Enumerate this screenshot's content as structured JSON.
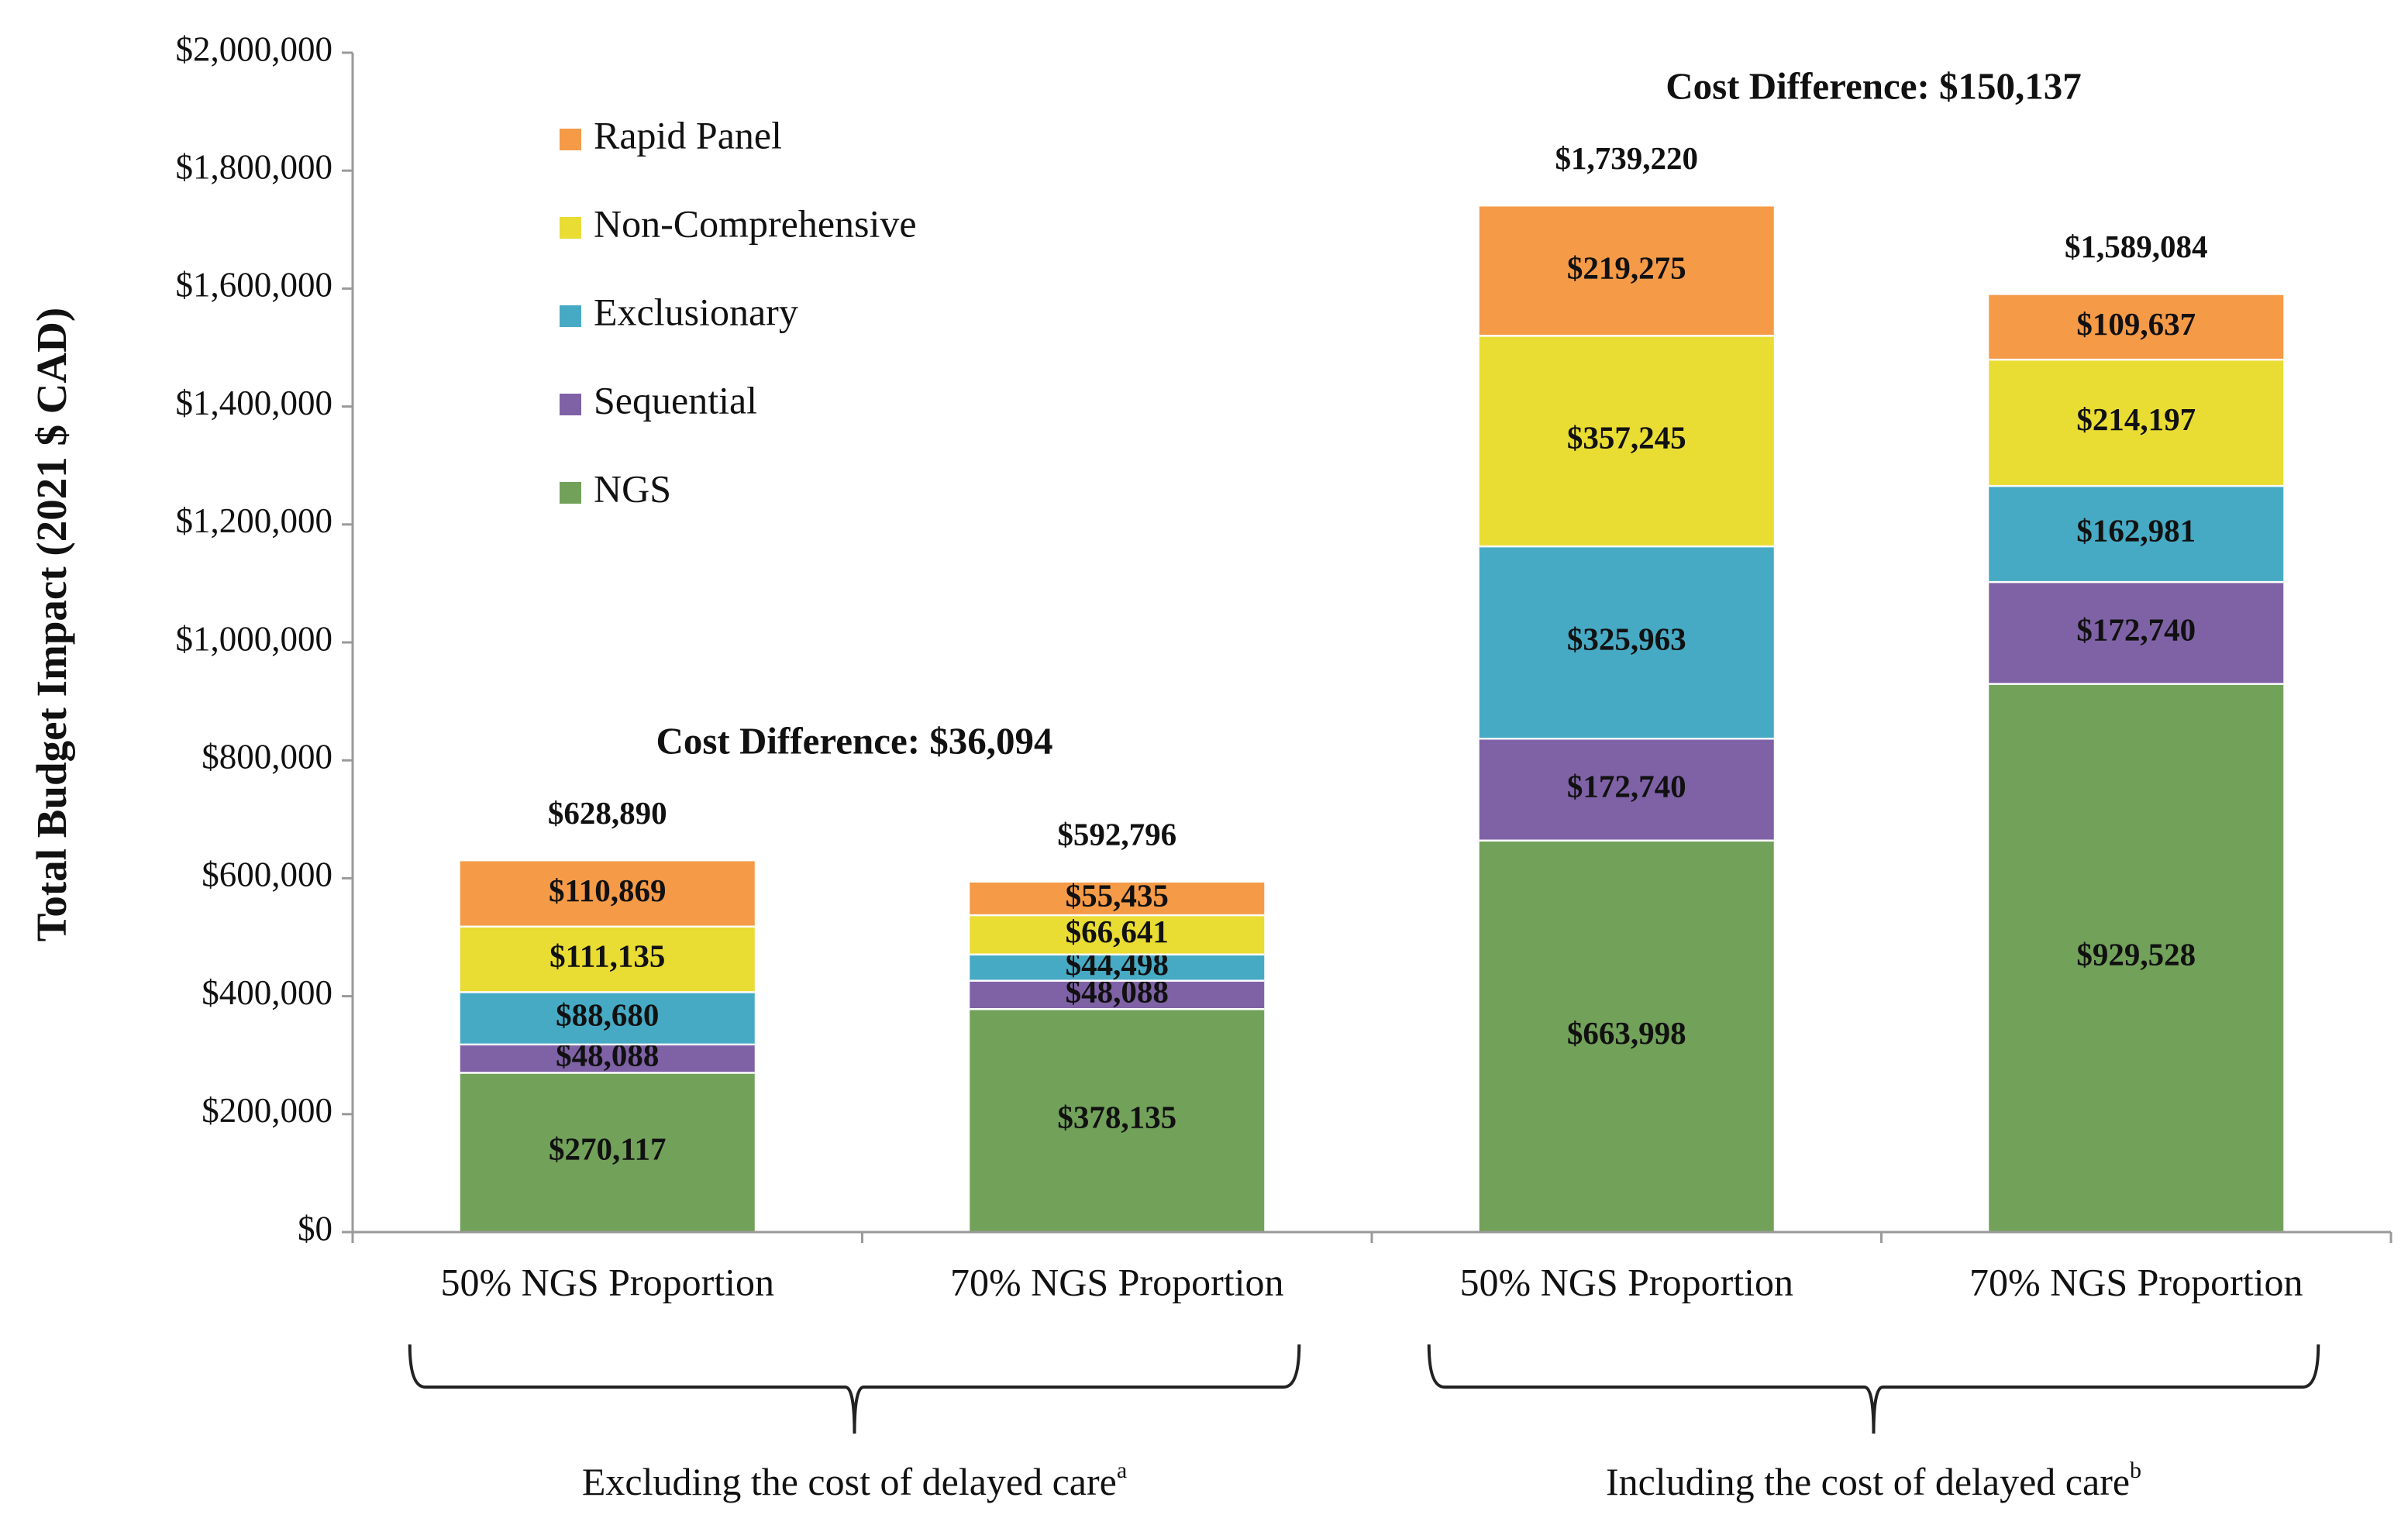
{
  "chart_data": {
    "type": "bar",
    "stacked": true,
    "title": "",
    "xlabel": "",
    "ylabel": "Total Budget Impact (2021 $ CAD)",
    "ylim": [
      0,
      2000000
    ],
    "yticks": [
      0,
      200000,
      400000,
      600000,
      800000,
      1000000,
      1200000,
      1400000,
      1600000,
      1800000,
      2000000
    ],
    "ytick_labels": [
      "$0",
      "$200,000",
      "$400,000",
      "$600,000",
      "$800,000",
      "$1,000,000",
      "$1,200,000",
      "$1,400,000",
      "$1,600,000",
      "$1,800,000",
      "$2,000,000"
    ],
    "categories": [
      "50% NGS Proportion",
      "70% NGS Proportion",
      "50% NGS Proportion",
      "70% NGS Proportion"
    ],
    "series": [
      {
        "name": "NGS",
        "color": "#72a15a",
        "values": [
          270117,
          378135,
          663998,
          929528
        ],
        "labels": [
          "$270,117",
          "$378,135",
          "$663,998",
          "$929,528"
        ]
      },
      {
        "name": "Sequential",
        "color": "#7f62a6",
        "values": [
          48088,
          48088,
          172740,
          172740
        ],
        "labels": [
          "$48,088",
          "$48,088",
          "$172,740",
          "$172,740"
        ]
      },
      {
        "name": "Exclusionary",
        "color": "#46aac4",
        "values": [
          88680,
          44498,
          325963,
          162981
        ],
        "labels": [
          "$88,680",
          "$44,498",
          "$325,963",
          "$162,981"
        ]
      },
      {
        "name": "Non-Comprehensive",
        "color": "#e9dc33",
        "values": [
          111135,
          66641,
          357245,
          214197
        ],
        "labels": [
          "$111,135",
          "$66,641",
          "$357,245",
          "$214,197"
        ]
      },
      {
        "name": "Rapid Panel",
        "color": "#f59a47",
        "values": [
          110869,
          55435,
          219275,
          109637
        ],
        "labels": [
          "$110,869",
          "$55,435",
          "$219,275",
          "$109,637"
        ]
      }
    ],
    "totals": [
      628890,
      592796,
      1739220,
      1589084
    ],
    "total_labels": [
      "$628,890",
      "$592,796",
      "$1,739,220",
      "$1,589,084"
    ],
    "legend_order": [
      "Rapid Panel",
      "Non-Comprehensive",
      "Exclusionary",
      "Sequential",
      "NGS"
    ],
    "legend_position": "top-left",
    "grid": false,
    "groups": [
      {
        "label": "Excluding the cost of delayed care",
        "superscript": "a",
        "categories": [
          0,
          1
        ],
        "cost_difference_label": "Cost Difference: $36,094"
      },
      {
        "label": "Including the cost of delayed care",
        "superscript": "b",
        "categories": [
          2,
          3
        ],
        "cost_difference_label": "Cost Difference: $150,137"
      }
    ]
  }
}
